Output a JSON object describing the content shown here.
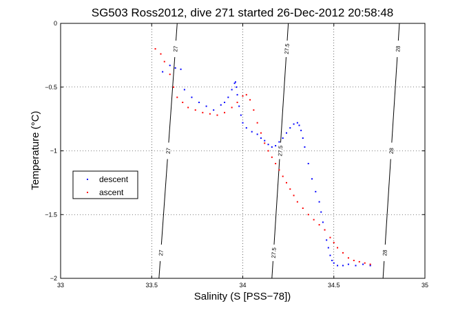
{
  "chart_data": {
    "type": "scatter",
    "title": "SG503 Ross2012, dive 271 started 26-Dec-2012 20:58:48",
    "xlabel": "Salinity (S [PSS−78])",
    "ylabel": "Temperature (°C)",
    "xlim": [
      33,
      35
    ],
    "ylim": [
      -2,
      0
    ],
    "xticks": [
      "33",
      "33.5",
      "34",
      "34.5",
      "35"
    ],
    "yticks": [
      "0",
      "−0.5",
      "−1",
      "−1.5",
      "−2"
    ],
    "grid": true,
    "legend": {
      "placement": "middle-left",
      "entries": [
        "descent",
        "ascent"
      ]
    },
    "contours": [
      {
        "label": "27",
        "s_at_top": 33.64,
        "s_at_bottom": 33.54
      },
      {
        "label": "27.5",
        "s_at_top": 34.25,
        "s_at_bottom": 34.16
      },
      {
        "label": "28",
        "s_at_top": 34.86,
        "s_at_bottom": 34.77
      }
    ],
    "series": [
      {
        "name": "descent",
        "color": "#0000ff",
        "x": [
          33.56,
          33.6,
          33.63,
          33.66,
          33.68,
          33.72,
          33.76,
          33.8,
          33.84,
          33.88,
          33.9,
          33.92,
          33.94,
          33.955,
          33.96,
          33.965,
          33.97,
          33.98,
          33.99,
          34.0,
          34.02,
          34.05,
          34.08,
          34.1,
          34.12,
          34.14,
          34.16,
          34.18,
          34.2,
          34.22,
          34.24,
          34.26,
          34.28,
          34.3,
          34.31,
          34.32,
          34.33,
          34.34,
          34.36,
          34.38,
          34.4,
          34.42,
          34.43,
          34.44,
          34.45,
          34.46,
          34.47,
          34.48,
          34.49,
          34.5,
          34.52,
          34.55,
          34.58,
          34.62,
          34.66,
          34.7
        ],
        "y": [
          -0.38,
          -0.33,
          -0.35,
          -0.36,
          -0.52,
          -0.58,
          -0.62,
          -0.65,
          -0.68,
          -0.64,
          -0.62,
          -0.58,
          -0.52,
          -0.47,
          -0.46,
          -0.5,
          -0.56,
          -0.65,
          -0.72,
          -0.78,
          -0.82,
          -0.85,
          -0.87,
          -0.9,
          -0.92,
          -0.95,
          -0.97,
          -0.96,
          -0.93,
          -0.9,
          -0.86,
          -0.82,
          -0.79,
          -0.78,
          -0.8,
          -0.84,
          -0.9,
          -0.97,
          -1.1,
          -1.22,
          -1.32,
          -1.4,
          -1.48,
          -1.56,
          -1.62,
          -1.7,
          -1.76,
          -1.82,
          -1.86,
          -1.88,
          -1.9,
          -1.9,
          -1.89,
          -1.9,
          -1.89,
          -1.9
        ]
      },
      {
        "name": "ascent",
        "color": "#ff0000",
        "x": [
          33.52,
          33.55,
          33.57,
          33.6,
          33.62,
          33.64,
          33.67,
          33.7,
          33.74,
          33.78,
          33.82,
          33.86,
          33.9,
          33.94,
          33.97,
          34.0,
          34.02,
          34.04,
          34.06,
          34.08,
          34.1,
          34.12,
          34.14,
          34.16,
          34.18,
          34.2,
          34.22,
          34.24,
          34.26,
          34.28,
          34.3,
          34.33,
          34.36,
          34.39,
          34.42,
          34.45,
          34.48,
          34.5,
          34.52,
          34.55,
          34.58,
          34.61,
          34.64,
          34.67,
          34.7
        ],
        "y": [
          -0.2,
          -0.24,
          -0.3,
          -0.4,
          -0.5,
          -0.58,
          -0.62,
          -0.66,
          -0.68,
          -0.7,
          -0.71,
          -0.72,
          -0.7,
          -0.66,
          -0.62,
          -0.57,
          -0.56,
          -0.6,
          -0.68,
          -0.78,
          -0.86,
          -0.94,
          -1.0,
          -1.05,
          -1.1,
          -1.15,
          -1.2,
          -1.25,
          -1.3,
          -1.35,
          -1.4,
          -1.45,
          -1.5,
          -1.54,
          -1.58,
          -1.62,
          -1.68,
          -1.72,
          -1.76,
          -1.8,
          -1.84,
          -1.86,
          -1.87,
          -1.88,
          -1.89
        ]
      }
    ]
  }
}
